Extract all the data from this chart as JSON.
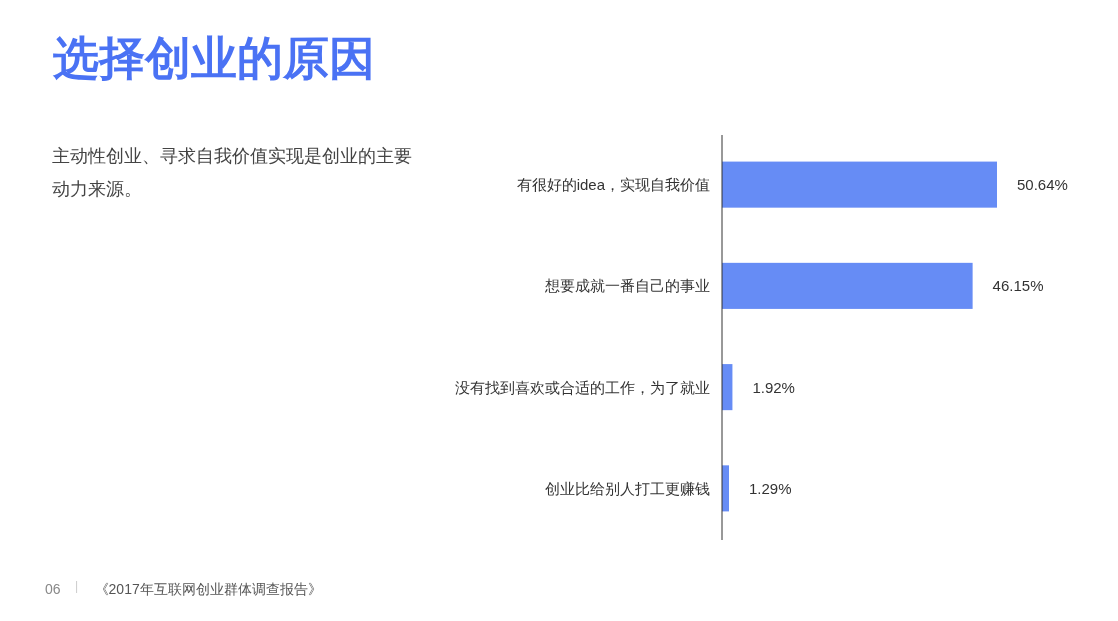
{
  "chart_data": {
    "type": "bar",
    "orientation": "horizontal",
    "title": "选择创业的原因",
    "subtitle": "主动性创业、寻求自我价值实现是创业的主要动力来源。",
    "categories": [
      "有很好的idea，实现自我价值",
      "想要成就一番自己的事业",
      "没有找到喜欢或合适的工作，为了就业",
      "创业比给别人打工更赚钱"
    ],
    "values": [
      50.64,
      46.15,
      1.92,
      1.29
    ],
    "color": "#668cf5",
    "value_labels": [
      "50.64%",
      "46.15%",
      "1.92%",
      "1.29%"
    ],
    "annotations": [
      "06",
      "《2017年互联网创业群体调查报告》"
    ]
  }
}
